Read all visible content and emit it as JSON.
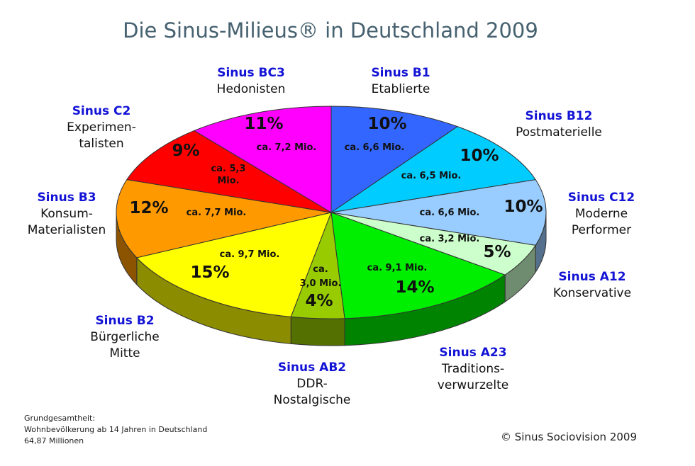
{
  "title": "Die Sinus-Milieus® in Deutschland 2009",
  "footnote": {
    "line1": "Grundgesamtheit:",
    "line2": "Wohnbevölkerung ab 14 Jahren in Deutschland",
    "line3": "64,87 Millionen"
  },
  "copyright": "© Sinus Sociovision 2009",
  "chart_data": {
    "type": "pie",
    "title": "Die Sinus-Milieus® in Deutschland 2009",
    "unit": "%",
    "slices": [
      {
        "code": "Sinus B1",
        "name": [
          "Etablierte"
        ],
        "value": 10,
        "label": "10%",
        "mio": [
          "ca. 6,6 Mio."
        ],
        "color": "#3366ff"
      },
      {
        "code": "Sinus B12",
        "name": [
          "Postmaterielle"
        ],
        "value": 10,
        "label": "10%",
        "mio": [
          "ca. 6,5 Mio."
        ],
        "color": "#00ccff"
      },
      {
        "code": "Sinus C12",
        "name": [
          "Moderne",
          "Performer"
        ],
        "value": 10,
        "label": "10%",
        "mio": [
          "ca. 6,6 Mio."
        ],
        "color": "#99ccff"
      },
      {
        "code": "Sinus A12",
        "name": [
          "Konservative"
        ],
        "value": 5,
        "label": "5%",
        "mio": [
          "ca. 3,2 Mio."
        ],
        "color": "#ccffcc"
      },
      {
        "code": "Sinus A23",
        "name": [
          "Traditions-",
          "verwurzelte"
        ],
        "value": 14,
        "label": "14%",
        "mio": [
          "ca. 9,1 Mio."
        ],
        "color": "#00ee00"
      },
      {
        "code": "Sinus AB2",
        "name": [
          "DDR-",
          "Nostalgische"
        ],
        "value": 4,
        "label": "4%",
        "mio": [
          "ca.",
          "3,0 Mio."
        ],
        "color": "#99cc00"
      },
      {
        "code": "Sinus B2",
        "name": [
          "Bürgerliche",
          "Mitte"
        ],
        "value": 15,
        "label": "15%",
        "mio": [
          "ca. 9,7 Mio."
        ],
        "color": "#ffff00"
      },
      {
        "code": "Sinus B3",
        "name": [
          "Konsum-",
          "Materialisten"
        ],
        "value": 12,
        "label": "12%",
        "mio": [
          "ca. 7,7 Mio."
        ],
        "color": "#ff9900"
      },
      {
        "code": "Sinus C2",
        "name": [
          "Experimen-",
          "talisten"
        ],
        "value": 9,
        "label": "9%",
        "mio": [
          "ca. 5,3",
          "Mio."
        ],
        "color": "#ff0000"
      },
      {
        "code": "Sinus BC3",
        "name": [
          "Hedonisten"
        ],
        "value": 11,
        "label": "11%",
        "mio": [
          "ca. 7,2 Mio."
        ],
        "color": "#ff00ff"
      }
    ]
  }
}
